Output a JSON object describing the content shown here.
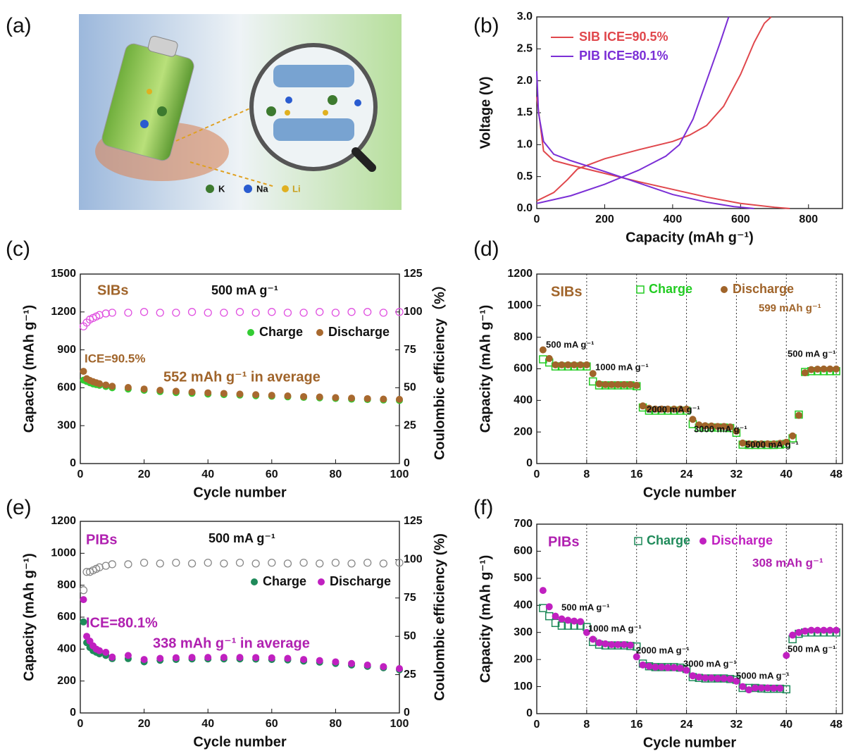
{
  "figure": {
    "panels": [
      "(a)",
      "(b)",
      "(c)",
      "(d)",
      "(e)",
      "(f)"
    ],
    "illustration_legend": [
      "K",
      "Na",
      "Li"
    ]
  },
  "chart_data": [
    {
      "type": "line",
      "xlabel": "Capacity (mAh g⁻¹)",
      "ylabel": "Voltage (V)",
      "xlim": [
        0,
        900
      ],
      "xticks": [
        0,
        200,
        400,
        600,
        800
      ],
      "ylim": [
        0,
        3
      ],
      "yticks": [
        {
          "value": 0,
          "label": "0.0"
        },
        {
          "value": 0.5,
          "label": "0.5"
        },
        {
          "value": 1,
          "label": "1.0"
        },
        {
          "value": 1.5,
          "label": "1.5"
        },
        {
          "value": 2,
          "label": "2.0"
        },
        {
          "value": 2.5,
          "label": "2.5"
        },
        {
          "value": 3,
          "label": "3.0"
        }
      ],
      "legend_colored": true,
      "series": [
        {
          "name": "SIB  ICE=90.5%",
          "color": "#e0474c",
          "x": [
            0,
            20,
            50,
            100,
            200,
            300,
            400,
            500,
            600,
            700,
            745,
            null,
            0,
            50,
            90,
            120,
            200,
            300,
            400,
            450,
            500,
            550,
            600,
            640,
            670,
            690
          ],
          "values": [
            1.75,
            0.9,
            0.75,
            0.68,
            0.55,
            0.42,
            0.3,
            0.18,
            0.08,
            0.02,
            0,
            null,
            0.12,
            0.25,
            0.45,
            0.62,
            0.78,
            0.92,
            1.05,
            1.15,
            1.3,
            1.6,
            2.1,
            2.6,
            2.9,
            3.0
          ]
        },
        {
          "name": "PIB  ICE=80.1%",
          "color": "#7b2fd6",
          "x": [
            0,
            5,
            20,
            50,
            100,
            200,
            300,
            400,
            500,
            580,
            640,
            null,
            0,
            100,
            200,
            300,
            380,
            420,
            460,
            500,
            540,
            565
          ],
          "values": [
            2.15,
            1.5,
            1.05,
            0.85,
            0.75,
            0.58,
            0.4,
            0.22,
            0.1,
            0.03,
            0,
            null,
            0.08,
            0.2,
            0.38,
            0.6,
            0.82,
            1.0,
            1.4,
            2.0,
            2.6,
            3.0
          ]
        }
      ]
    },
    {
      "type": "scatter",
      "xlabel": "Cycle number",
      "ylabel": "Capacity (mAh g⁻¹)",
      "y2label": "Coulombic efficiency（%）",
      "xlim": [
        0,
        100
      ],
      "xticks": [
        0,
        20,
        40,
        60,
        80,
        100
      ],
      "ylim": [
        0,
        1500
      ],
      "yticks": [
        0,
        300,
        600,
        900,
        1200,
        1500
      ],
      "y2lim": [
        0,
        125
      ],
      "y2ticks": [
        0,
        25,
        50,
        75,
        100,
        125
      ],
      "legend_colored": false,
      "annotations": [
        {
          "text": "SIBs",
          "color": "#a0642a"
        },
        {
          "text": "500 mA g⁻¹",
          "color": "#111111"
        },
        {
          "text": "ICE=90.5%",
          "color": "#a0642a"
        },
        {
          "text": "552 mAh g⁻¹  in  average",
          "color": "#a0642a"
        }
      ],
      "x": [
        1,
        2,
        3,
        4,
        5,
        6,
        8,
        10,
        15,
        20,
        25,
        30,
        35,
        40,
        45,
        50,
        55,
        60,
        65,
        70,
        75,
        80,
        85,
        90,
        95,
        100
      ],
      "series": [
        {
          "name": "Charge",
          "color": "#33cc33",
          "marker": "circle",
          "values": [
            660,
            650,
            640,
            630,
            625,
            620,
            610,
            600,
            590,
            580,
            570,
            562,
            556,
            550,
            546,
            542,
            537,
            533,
            528,
            524,
            520,
            515,
            510,
            507,
            503,
            500
          ]
        },
        {
          "name": "Discharge",
          "color": "#a8692f",
          "marker": "circle",
          "values": [
            730,
            672,
            658,
            648,
            640,
            632,
            622,
            612,
            602,
            590,
            580,
            572,
            566,
            560,
            555,
            550,
            545,
            540,
            535,
            530,
            527,
            522,
            518,
            514,
            510,
            508
          ]
        },
        {
          "color": "#e050e0",
          "marker": "open-circle",
          "axis": "y2",
          "values": [
            90.5,
            93,
            95,
            96,
            97,
            98,
            99,
            99.5,
            99.5,
            100,
            99.5,
            99.5,
            100,
            99.5,
            99.5,
            100,
            99.5,
            100,
            99.5,
            99.5,
            100,
            99.5,
            100,
            100,
            99.5,
            100
          ]
        }
      ]
    },
    {
      "type": "scatter",
      "xlabel": "Cycle number",
      "ylabel": "Capacity (mAh g⁻¹)",
      "xlim": [
        0,
        49
      ],
      "xticks": [
        0,
        8,
        16,
        24,
        32,
        40,
        48
      ],
      "grid": "x",
      "ylim": [
        0,
        1200
      ],
      "yticks": [
        0,
        200,
        400,
        600,
        800,
        1000,
        1200
      ],
      "legend_colored": true,
      "annotations": [
        {
          "text": "SIBs",
          "color": "#a0642a"
        },
        {
          "text": "599 mAh g⁻¹",
          "color": "#a0642a"
        },
        {
          "text": "500 mA g⁻¹",
          "color": "#111111"
        },
        {
          "text": "1000 mA g⁻¹",
          "color": "#111111"
        },
        {
          "text": "2000 mA g⁻¹",
          "color": "#111111"
        },
        {
          "text": "3000 mA g⁻¹",
          "color": "#111111"
        },
        {
          "text": "5000 mA g⁻¹",
          "color": "#111111"
        },
        {
          "text": "500 mA g⁻¹",
          "color": "#111111"
        }
      ],
      "x": [
        1,
        2,
        3,
        4,
        5,
        6,
        7,
        8,
        9,
        10,
        11,
        12,
        13,
        14,
        15,
        16,
        17,
        18,
        19,
        20,
        21,
        22,
        23,
        24,
        25,
        26,
        27,
        28,
        29,
        30,
        31,
        32,
        33,
        34,
        35,
        36,
        37,
        38,
        39,
        40,
        41,
        42,
        43,
        44,
        45,
        46,
        47,
        48
      ],
      "series": [
        {
          "name": "Charge",
          "color": "#22cc22",
          "marker": "open-square",
          "values": [
            660,
            640,
            615,
            615,
            615,
            615,
            615,
            615,
            520,
            495,
            495,
            495,
            495,
            495,
            495,
            490,
            355,
            335,
            335,
            335,
            335,
            335,
            335,
            335,
            250,
            228,
            228,
            228,
            228,
            228,
            225,
            195,
            120,
            118,
            118,
            118,
            118,
            118,
            120,
            125,
            160,
            310,
            580,
            585,
            585,
            585,
            585,
            585
          ]
        },
        {
          "name": "Discharge",
          "color": "#a0642a",
          "marker": "circle",
          "values": [
            720,
            665,
            625,
            625,
            625,
            625,
            625,
            625,
            570,
            505,
            500,
            500,
            500,
            500,
            500,
            495,
            365,
            350,
            345,
            345,
            345,
            345,
            345,
            345,
            280,
            245,
            240,
            238,
            235,
            235,
            232,
            205,
            130,
            125,
            125,
            125,
            125,
            125,
            128,
            135,
            175,
            305,
            575,
            595,
            598,
            599,
            599,
            599
          ]
        }
      ]
    },
    {
      "type": "scatter",
      "xlabel": "Cycle number",
      "ylabel": "Capacity (mAh g⁻¹)",
      "y2label": "Coulombic efficiency (%)",
      "xlim": [
        0,
        100
      ],
      "xticks": [
        0,
        20,
        40,
        60,
        80,
        100
      ],
      "ylim": [
        0,
        1200
      ],
      "yticks": [
        0,
        200,
        400,
        600,
        800,
        1000,
        1200
      ],
      "y2lim": [
        0,
        125
      ],
      "y2ticks": [
        0,
        25,
        50,
        75,
        100,
        125
      ],
      "legend_colored": false,
      "annotations": [
        {
          "text": "PIBs",
          "color": "#b020b0"
        },
        {
          "text": "500 mA g⁻¹",
          "color": "#111111"
        },
        {
          "text": "ICE=80.1%",
          "color": "#b020b0"
        },
        {
          "text": "338 mAh g⁻¹  in  average",
          "color": "#b020b0"
        }
      ],
      "x": [
        1,
        2,
        3,
        4,
        5,
        6,
        8,
        10,
        15,
        20,
        25,
        30,
        35,
        40,
        45,
        50,
        55,
        60,
        65,
        70,
        75,
        80,
        85,
        90,
        95,
        100
      ],
      "series": [
        {
          "name": "Charge",
          "color": "#1f8a5a",
          "marker": "circle",
          "values": [
            570,
            440,
            410,
            390,
            380,
            370,
            360,
            340,
            340,
            320,
            330,
            335,
            338,
            338,
            338,
            338,
            337,
            335,
            332,
            325,
            318,
            310,
            300,
            292,
            283,
            270
          ]
        },
        {
          "name": "Discharge",
          "color": "#c020c0",
          "marker": "circle",
          "values": [
            710,
            480,
            450,
            420,
            400,
            390,
            380,
            350,
            360,
            335,
            342,
            346,
            348,
            348,
            348,
            348,
            347,
            345,
            342,
            335,
            328,
            320,
            310,
            300,
            290,
            278
          ]
        },
        {
          "color": "#888888",
          "marker": "open-circle",
          "axis": "y2",
          "values": [
            80.1,
            92,
            92,
            93,
            94,
            95,
            96,
            97,
            97,
            98,
            97.5,
            98,
            97.5,
            98,
            97.5,
            98,
            97.5,
            98,
            97.5,
            98,
            97.5,
            98,
            97.5,
            98,
            97.5,
            98
          ]
        }
      ]
    },
    {
      "type": "scatter",
      "xlabel": "Cycle number",
      "ylabel": "Capacity (mAh g⁻¹)",
      "xlim": [
        0,
        49
      ],
      "xticks": [
        0,
        8,
        16,
        24,
        32,
        40,
        48
      ],
      "grid": "x",
      "ylim": [
        0,
        700
      ],
      "yticks": [
        0,
        100,
        200,
        300,
        400,
        500,
        600,
        700
      ],
      "legend_colored": true,
      "annotations": [
        {
          "text": "PIBs",
          "color": "#b020b0"
        },
        {
          "text": "308 mAh g⁻¹",
          "color": "#b020b0"
        },
        {
          "text": "500 mA g⁻¹",
          "color": "#111111"
        },
        {
          "text": "1000 mA g⁻¹",
          "color": "#111111"
        },
        {
          "text": "2000 mA g⁻¹",
          "color": "#111111"
        },
        {
          "text": "3000 mA g⁻¹",
          "color": "#111111"
        },
        {
          "text": "5000 mA g⁻¹",
          "color": "#111111"
        },
        {
          "text": "500 mA g⁻¹",
          "color": "#111111"
        }
      ],
      "x": [
        1,
        2,
        3,
        4,
        5,
        6,
        7,
        8,
        9,
        10,
        11,
        12,
        13,
        14,
        15,
        16,
        17,
        18,
        19,
        20,
        21,
        22,
        23,
        24,
        25,
        26,
        27,
        28,
        29,
        30,
        31,
        32,
        33,
        34,
        35,
        36,
        37,
        38,
        39,
        40,
        41,
        42,
        43,
        44,
        45,
        46,
        47,
        48
      ],
      "series": [
        {
          "name": "Charge",
          "color": "#1f8a5a",
          "marker": "open-square",
          "values": [
            390,
            360,
            335,
            325,
            325,
            325,
            325,
            320,
            265,
            255,
            252,
            252,
            252,
            252,
            250,
            248,
            185,
            175,
            172,
            172,
            172,
            172,
            170,
            165,
            135,
            132,
            130,
            130,
            130,
            130,
            128,
            125,
            95,
            95,
            95,
            93,
            92,
            92,
            92,
            90,
            275,
            295,
            300,
            300,
            300,
            300,
            300,
            300
          ]
        },
        {
          "name": "Discharge",
          "color": "#c020c0",
          "marker": "circle",
          "values": [
            455,
            395,
            360,
            350,
            345,
            342,
            340,
            300,
            275,
            262,
            258,
            255,
            255,
            255,
            253,
            210,
            180,
            175,
            172,
            172,
            170,
            170,
            168,
            160,
            140,
            135,
            132,
            132,
            130,
            130,
            128,
            120,
            100,
            88,
            95,
            95,
            95,
            94,
            94,
            215,
            290,
            300,
            305,
            308,
            308,
            308,
            308,
            308
          ]
        }
      ]
    }
  ]
}
